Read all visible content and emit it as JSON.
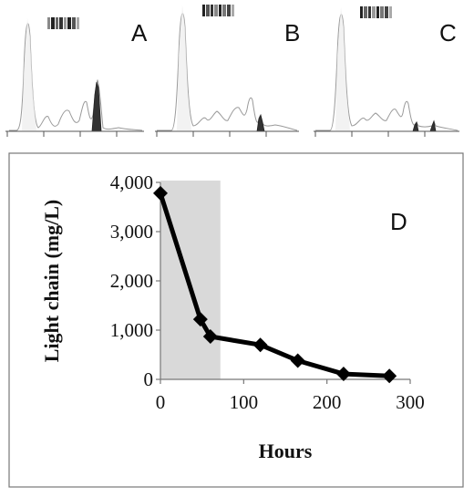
{
  "panels": {
    "top_labels": [
      "A",
      "B",
      "C"
    ],
    "bottom_label": "D"
  },
  "chart_data": {
    "type": "line",
    "title": "",
    "xlabel": "Hours",
    "ylabel": "Light chain (mg/L)",
    "xlim": [
      0,
      300
    ],
    "ylim": [
      0,
      4000
    ],
    "x_ticks": [
      0,
      100,
      200,
      300
    ],
    "x_tick_labels": [
      "0",
      "100",
      "200",
      "300"
    ],
    "y_ticks": [
      0,
      1000,
      2000,
      3000,
      4000
    ],
    "y_tick_labels": [
      "0",
      "1,000",
      "2,000",
      "3,000",
      "4,000"
    ],
    "shaded_region": {
      "x_start": 0,
      "x_end": 72,
      "color": "#d9d9d9"
    },
    "grid": false,
    "marker": "diamond",
    "line_color": "#000000",
    "series": [
      {
        "x": [
          0,
          48,
          60,
          120,
          165,
          220,
          275
        ],
        "y": [
          3780,
          1220,
          870,
          700,
          380,
          110,
          70
        ]
      }
    ]
  }
}
